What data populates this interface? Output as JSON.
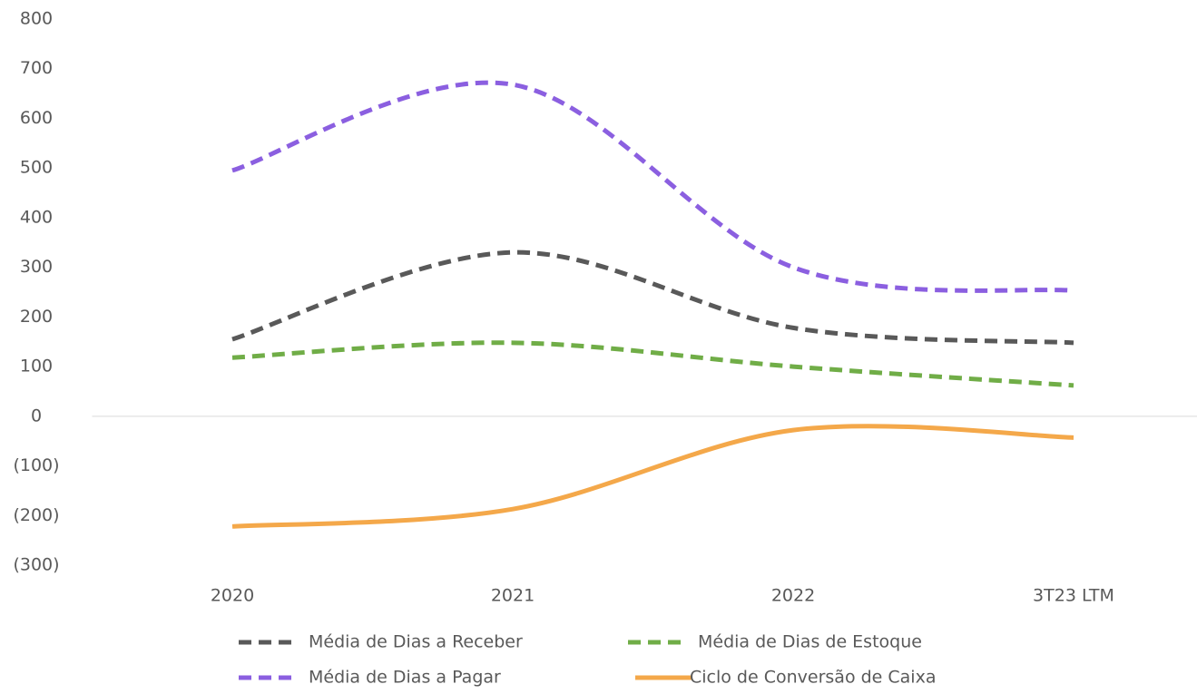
{
  "chart_data": {
    "type": "line",
    "categories": [
      "2020",
      "2021",
      "2022",
      "3T23 LTM"
    ],
    "series": [
      {
        "name": "Média de Dias a Receber",
        "color": "#595959",
        "style": "dashed",
        "values": [
          155,
          330,
          178,
          148
        ]
      },
      {
        "name": "Média de Dias de Estoque",
        "color": "#70ad47",
        "style": "dashed",
        "values": [
          118,
          148,
          100,
          62
        ]
      },
      {
        "name": "Média de Dias a Pagar",
        "color": "#8b5fe0",
        "style": "dashed",
        "values": [
          495,
          668,
          300,
          253
        ]
      },
      {
        "name": "Ciclo de Conversão de Caixa",
        "color": "#f4a84a",
        "style": "solid",
        "values": [
          -222,
          -187,
          -28,
          -43
        ]
      }
    ],
    "ylim": [
      -300,
      800
    ],
    "yticks": [
      {
        "value": -300,
        "label": "(300)"
      },
      {
        "value": -200,
        "label": "(200)"
      },
      {
        "value": -100,
        "label": "(100)"
      },
      0,
      100,
      200,
      300,
      400,
      500,
      600,
      700,
      800
    ],
    "smooth": true,
    "grid": false,
    "legend": "bottom"
  }
}
